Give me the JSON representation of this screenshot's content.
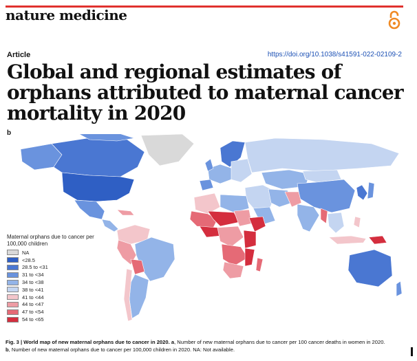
{
  "header": {
    "journal": "nature medicine",
    "article_type": "Article",
    "doi": "https://doi.org/10.1038/s41591-022-02109-2",
    "open_access_icon": "open-access-icon"
  },
  "paper": {
    "title": "Global and regional estimates of orphans attributed to maternal cancer mortality in 2020"
  },
  "figure": {
    "panel_label": "b",
    "legend_title": "Maternal orphans due to cancer per 100,000 children",
    "legend": [
      {
        "label": "NA",
        "color": "#d9d9d9"
      },
      {
        "label": "<28.5",
        "color": "#2f5fc4"
      },
      {
        "label": "28.5 to <31",
        "color": "#4a77d2"
      },
      {
        "label": "31 to <34",
        "color": "#6a93de"
      },
      {
        "label": "34 to <38",
        "color": "#93b4e8"
      },
      {
        "label": "38 to <41",
        "color": "#c4d5f1"
      },
      {
        "label": "41 to <44",
        "color": "#f3c6cb"
      },
      {
        "label": "44 to <47",
        "color": "#ee9ca4"
      },
      {
        "label": "47 to <54",
        "color": "#e56a76"
      },
      {
        "label": "54 to <65",
        "color": "#d42e3e"
      }
    ],
    "caption_label": "Fig. 3 | World map of new maternal orphans due to cancer in 2020.",
    "caption_a_label": "a",
    "caption_a_text": ", Number of new maternal orphans due to cancer per 100 cancer deaths in women in 2020.",
    "caption_b_label": "b",
    "caption_b_text": ", Number of new maternal orphans due to cancer per 100,000 children in 2020. NA: Not available."
  }
}
